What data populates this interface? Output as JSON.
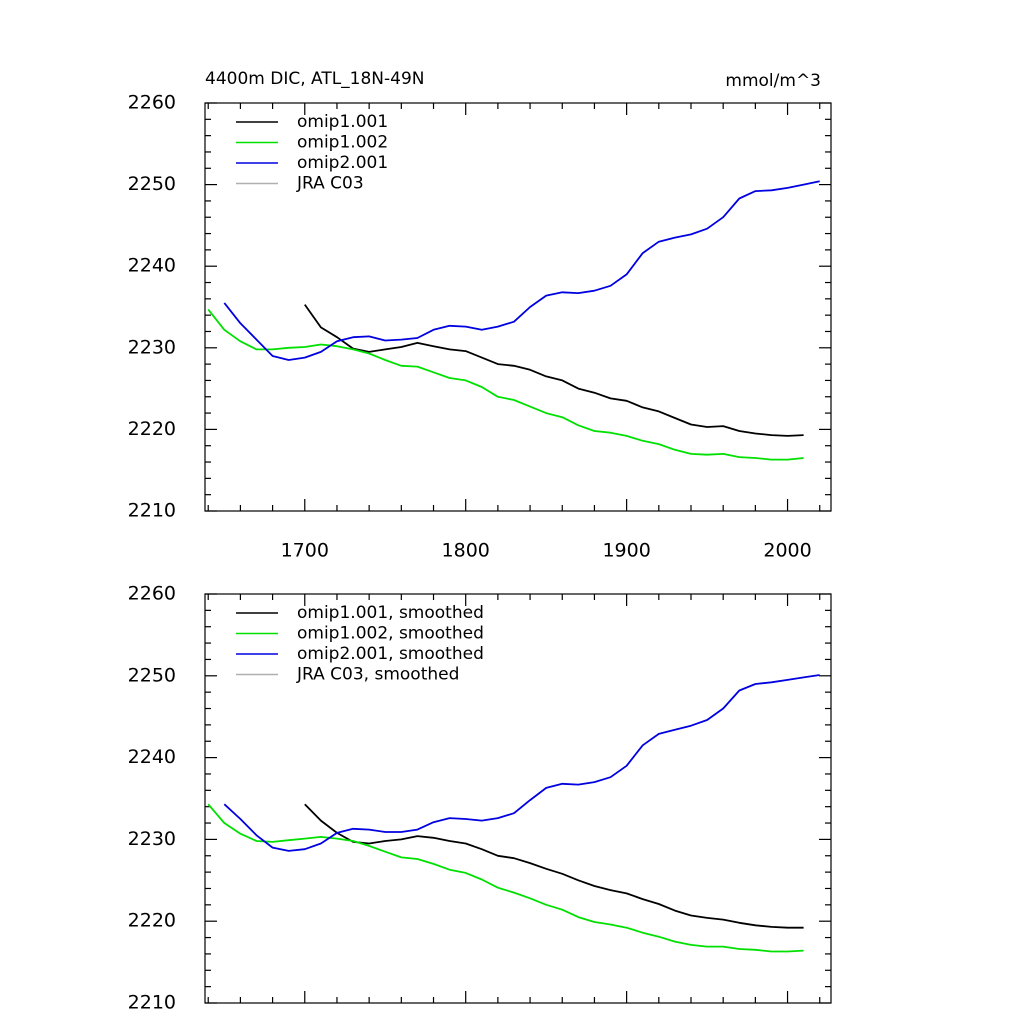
{
  "chart_data": [
    {
      "type": "line",
      "title": "4400m DIC, ATL_18N-49N",
      "units": "mmol/m^3",
      "x": [
        1640,
        1650,
        1660,
        1670,
        1680,
        1690,
        1700,
        1710,
        1720,
        1730,
        1740,
        1750,
        1760,
        1770,
        1780,
        1790,
        1800,
        1810,
        1820,
        1830,
        1840,
        1850,
        1860,
        1870,
        1880,
        1890,
        1900,
        1910,
        1920,
        1930,
        1940,
        1950,
        1960,
        1970,
        1980,
        1990,
        2000,
        2010,
        2020
      ],
      "series": [
        {
          "name": "omip1.001",
          "color": "#000000",
          "values": [
            null,
            null,
            null,
            null,
            null,
            null,
            2235.3,
            2232.5,
            2231.3,
            2229.9,
            2229.5,
            2229.8,
            2230.1,
            2230.6,
            2230.2,
            2229.8,
            2229.6,
            2228.8,
            2228,
            2227.8,
            2227.3,
            2226.5,
            2226,
            2225,
            2224.5,
            2223.8,
            2223.5,
            2222.7,
            2222.2,
            2221.4,
            2220.6,
            2220.3,
            2220.4,
            2219.8,
            2219.5,
            2219.3,
            2219.2,
            2219.3,
            null
          ]
        },
        {
          "name": "omip1.002",
          "color": "#00e000",
          "values": [
            2234.7,
            2232.2,
            2230.8,
            2229.8,
            2229.8,
            2230,
            2230.1,
            2230.4,
            2230.2,
            2229.8,
            2229.3,
            2228.5,
            2227.8,
            2227.7,
            2227,
            2226.3,
            2226,
            2225.2,
            2224,
            2223.6,
            2222.8,
            2222,
            2221.5,
            2220.5,
            2219.8,
            2219.6,
            2219.2,
            2218.6,
            2218.2,
            2217.5,
            2217,
            2216.9,
            2217,
            2216.6,
            2216.5,
            2216.3,
            2216.3,
            2216.5,
            null
          ]
        },
        {
          "name": "omip2.001",
          "color": "#0000e0",
          "values": [
            null,
            2235.5,
            2233,
            2231,
            2229,
            2228.5,
            2228.8,
            2229.5,
            2230.8,
            2231.3,
            2231.4,
            2230.9,
            2231,
            2231.2,
            2232.2,
            2232.7,
            2232.6,
            2232.2,
            2232.6,
            2233.2,
            2235,
            2236.4,
            2236.8,
            2236.7,
            2237,
            2237.6,
            2239,
            2241.6,
            2243,
            2243.5,
            2243.9,
            2244.6,
            2246,
            2248.3,
            2249.2,
            2249.3,
            2249.6,
            2250,
            2250.4
          ]
        },
        {
          "name": "JRA C03",
          "color": "#b0b0b0",
          "values": [
            null,
            null,
            null,
            null,
            null,
            null,
            null,
            null,
            null,
            null,
            null,
            null,
            null,
            null,
            null,
            null,
            null,
            null,
            null,
            null,
            null,
            null,
            null,
            null,
            null,
            null,
            null,
            null,
            null,
            null,
            null,
            null,
            null,
            null,
            null,
            null,
            null,
            null,
            null
          ]
        }
      ],
      "xlim": [
        1638,
        2027
      ],
      "xticks": [
        1700,
        1800,
        1900,
        2000
      ],
      "ylim": [
        2210,
        2260
      ],
      "yticks": [
        2210,
        2220,
        2230,
        2240,
        2250,
        2260
      ]
    },
    {
      "type": "line",
      "x": [
        1640,
        1650,
        1660,
        1670,
        1680,
        1690,
        1700,
        1710,
        1720,
        1730,
        1740,
        1750,
        1760,
        1770,
        1780,
        1790,
        1800,
        1810,
        1820,
        1830,
        1840,
        1850,
        1860,
        1870,
        1880,
        1890,
        1900,
        1910,
        1920,
        1930,
        1940,
        1950,
        1960,
        1970,
        1980,
        1990,
        2000,
        2010,
        2020
      ],
      "series": [
        {
          "name": "omip1.001, smoothed",
          "color": "#000000",
          "values": [
            null,
            null,
            null,
            null,
            null,
            null,
            2234.3,
            2232.3,
            2230.8,
            2229.7,
            2229.5,
            2229.8,
            2230,
            2230.4,
            2230.2,
            2229.8,
            2229.5,
            2228.8,
            2228,
            2227.7,
            2227.1,
            2226.4,
            2225.8,
            2225,
            2224.3,
            2223.8,
            2223.4,
            2222.7,
            2222.1,
            2221.3,
            2220.7,
            2220.4,
            2220.2,
            2219.8,
            2219.5,
            2219.3,
            2219.2,
            2219.2,
            null
          ]
        },
        {
          "name": "omip1.002, smoothed",
          "color": "#00e000",
          "values": [
            2234.3,
            2232,
            2230.7,
            2229.8,
            2229.7,
            2229.9,
            2230.1,
            2230.3,
            2230.1,
            2229.8,
            2229.2,
            2228.5,
            2227.8,
            2227.6,
            2227,
            2226.3,
            2225.9,
            2225.1,
            2224.1,
            2223.5,
            2222.8,
            2222,
            2221.4,
            2220.5,
            2219.9,
            2219.6,
            2219.2,
            2218.6,
            2218.1,
            2217.5,
            2217.1,
            2216.9,
            2216.9,
            2216.6,
            2216.5,
            2216.3,
            2216.3,
            2216.4,
            null
          ]
        },
        {
          "name": "omip2.001, smoothed",
          "color": "#0000e0",
          "values": [
            null,
            2234.3,
            2232.5,
            2230.5,
            2229,
            2228.6,
            2228.8,
            2229.5,
            2230.8,
            2231.3,
            2231.2,
            2230.9,
            2230.9,
            2231.2,
            2232.1,
            2232.6,
            2232.5,
            2232.3,
            2232.6,
            2233.2,
            2234.8,
            2236.3,
            2236.8,
            2236.7,
            2237,
            2237.6,
            2239,
            2241.5,
            2242.9,
            2243.4,
            2243.9,
            2244.6,
            2246,
            2248.2,
            2249,
            2249.2,
            2249.5,
            2249.8,
            2250.1
          ]
        },
        {
          "name": "JRA C03, smoothed",
          "color": "#b0b0b0",
          "values": [
            null,
            null,
            null,
            null,
            null,
            null,
            null,
            null,
            null,
            null,
            null,
            null,
            null,
            null,
            null,
            null,
            null,
            null,
            null,
            null,
            null,
            null,
            null,
            null,
            null,
            null,
            null,
            null,
            null,
            null,
            null,
            null,
            null,
            null,
            null,
            null,
            null,
            null,
            null
          ]
        }
      ],
      "xlim": [
        1638,
        2027
      ],
      "xticks": [
        1700,
        1800,
        1900,
        2000
      ],
      "ylim": [
        2210,
        2260
      ],
      "yticks": [
        2210,
        2220,
        2230,
        2240,
        2250,
        2260
      ]
    }
  ]
}
